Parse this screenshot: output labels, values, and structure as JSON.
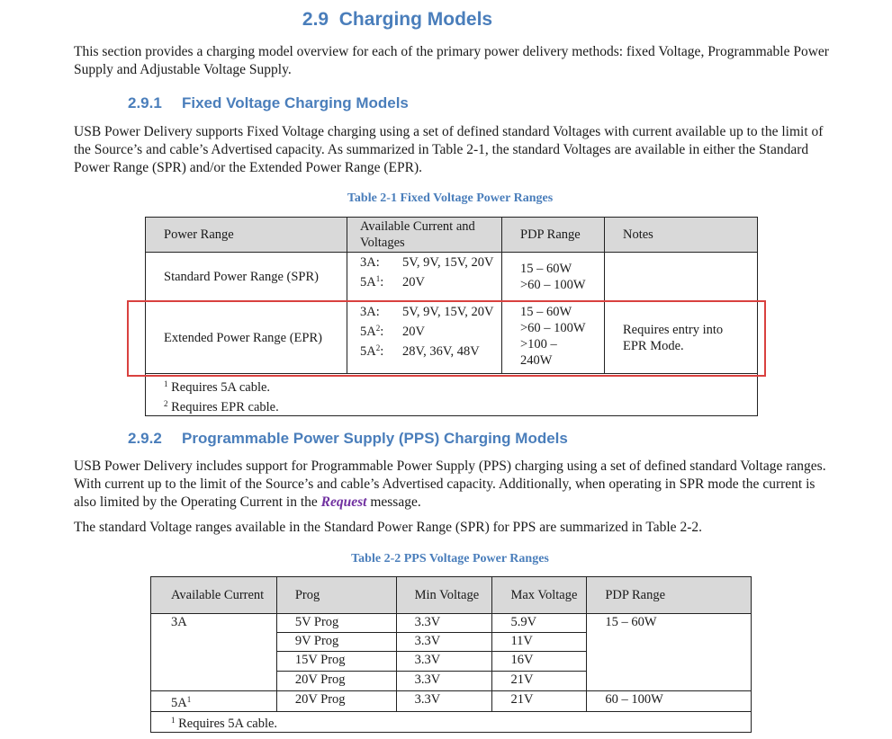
{
  "section": {
    "number": "2.9",
    "title": "Charging Models",
    "intro": "This section provides a charging model overview for each of the primary power delivery methods: fixed Voltage, Programmable Power Supply and Adjustable Voltage Supply."
  },
  "s1": {
    "number": "2.9.1",
    "title": "Fixed Voltage Charging Models",
    "para": "USB Power Delivery supports Fixed Voltage charging using a set of defined standard Voltages with current available up to the limit of the Source’s and cable’s Advertised capacity.  As summarized in Table 2-1, the standard Voltages are available in either the Standard Power Range (SPR) and/or the Extended Power Range (EPR)."
  },
  "table1": {
    "caption": "Table 2-1 Fixed Voltage Power Ranges",
    "headers": [
      "Power Range",
      "Available Current and Voltages",
      "PDP Range",
      "Notes"
    ],
    "spr": {
      "range": "Standard Power Range (SPR)",
      "c1": "3A:",
      "v1": "5V, 9V, 15V, 20V",
      "c2": "5A",
      "s2": "1",
      "c2b": ":",
      "v2": "20V",
      "pdp1": "15 – 60W",
      "pdp2": ">60 – 100W",
      "notes": ""
    },
    "epr": {
      "range": "Extended Power Range (EPR)",
      "c1": "3A:",
      "v1": "5V, 9V, 15V, 20V",
      "c2": "5A",
      "s2": "2",
      "c2b": ":",
      "v2": "20V",
      "c3": "5A",
      "s3": "2",
      "c3b": ":",
      "v3": "28V, 36V, 48V",
      "pdp1": "15 – 60W",
      "pdp2": ">60 – 100W",
      "pdp3": ">100 – 240W",
      "notes": "Requires entry into EPR Mode."
    },
    "footnotes": [
      {
        "mark": "1",
        "text": " Requires 5A cable."
      },
      {
        "mark": "2",
        "text": " Requires EPR cable."
      }
    ],
    "highlight_color": "#d9413f"
  },
  "s2": {
    "number": "2.9.2",
    "title": "Programmable Power Supply (PPS) Charging Models",
    "para_a": "USB Power Delivery includes support for Programmable Power Supply (PPS) charging using a set of defined standard Voltage ranges.  With current up to the limit of the Source’s and cable’s Advertised capacity. Additionally, when operating in SPR mode the current is also limited by the Operating Current in the ",
    "para_link": "Request",
    "para_b": " message.",
    "para2": "The standard Voltage ranges available in the Standard Power Range (SPR) for PPS are summarized in Table 2-2."
  },
  "table2": {
    "caption": "Table 2-2 PPS Voltage Power Ranges",
    "headers": [
      "Available Current",
      "Prog",
      "Min Voltage",
      "Max Voltage",
      "PDP Range"
    ],
    "current_3a": "3A",
    "current_5a": "5A",
    "current_5a_sup": "1",
    "pdp_3a": "15 – 60W",
    "pdp_5a": "60 – 100W",
    "rows": [
      {
        "prog": "5V Prog",
        "min": "3.3V",
        "max": "5.9V"
      },
      {
        "prog": "9V Prog",
        "min": "3.3V",
        "max": "11V"
      },
      {
        "prog": "15V Prog",
        "min": "3.3V",
        "max": "16V"
      },
      {
        "prog": "20V Prog",
        "min": "3.3V",
        "max": "21V"
      },
      {
        "prog": "20V Prog",
        "min": "3.3V",
        "max": "21V"
      }
    ],
    "footnote_mark": "1",
    "footnote": " Requires 5A cable."
  }
}
